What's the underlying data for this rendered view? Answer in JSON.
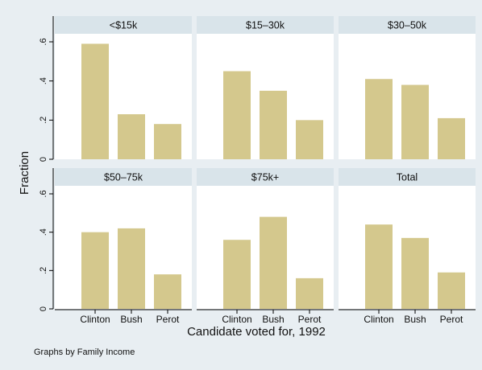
{
  "figure": {
    "note": "Graphs by Family Income"
  },
  "chart_data": {
    "type": "bar",
    "layout": "2x3 facet grid",
    "ylabel": "Fraction",
    "xlabel": "Candidate voted for, 1992",
    "categories": [
      "Clinton",
      "Bush",
      "Perot"
    ],
    "ylim": [
      0,
      0.6
    ],
    "yticks": [
      0,
      0.2,
      0.4,
      0.6
    ],
    "ytick_labels": [
      "0",
      ".2",
      ".4",
      ".6"
    ],
    "grid": false,
    "panels": [
      {
        "title": "<$15k",
        "values": [
          0.59,
          0.23,
          0.18
        ]
      },
      {
        "title": "$15–30k",
        "values": [
          0.45,
          0.35,
          0.2
        ]
      },
      {
        "title": "$30–50k",
        "values": [
          0.41,
          0.38,
          0.21
        ]
      },
      {
        "title": "$50–75k",
        "values": [
          0.4,
          0.42,
          0.18
        ]
      },
      {
        "title": "$75k+",
        "values": [
          0.36,
          0.48,
          0.16
        ]
      },
      {
        "title": "Total",
        "values": [
          0.44,
          0.37,
          0.19
        ]
      }
    ],
    "colors": {
      "background": "#e8eef2",
      "plot_area": "#ffffff",
      "strip": "#d9e4ea",
      "bar": "#d4c88d",
      "axis": "#000000",
      "text": "#111111"
    }
  }
}
